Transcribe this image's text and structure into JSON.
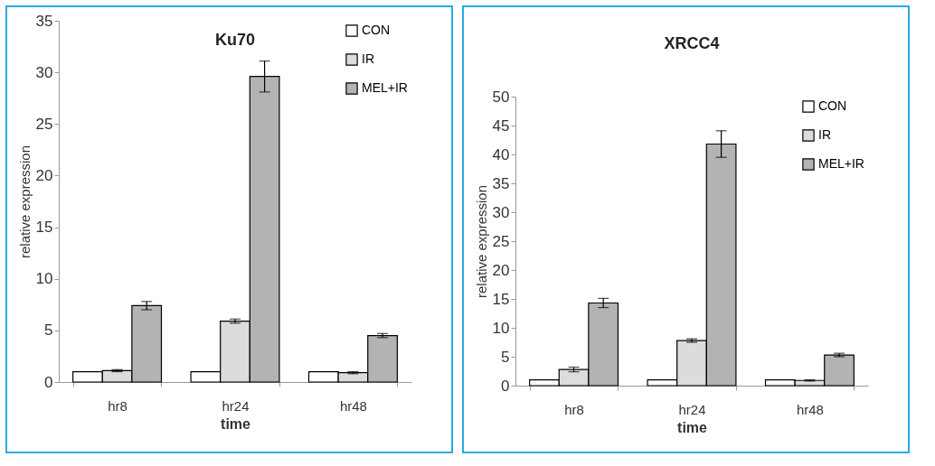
{
  "chart_data": [
    {
      "type": "bar",
      "title": "Ku70",
      "xlabel": "time",
      "ylabel": "relative expression",
      "categories": [
        "hr8",
        "hr24",
        "hr48"
      ],
      "ylim": [
        0,
        35
      ],
      "yticks": [
        0,
        5,
        10,
        15,
        20,
        25,
        30,
        35
      ],
      "grid": false,
      "legend": "top right",
      "series": [
        {
          "name": "CON",
          "color": "#ffffff",
          "values": [
            1,
            1,
            1
          ]
        },
        {
          "name": "IR",
          "color": "#dcdcdc",
          "values": [
            1.1,
            5.9,
            0.9
          ],
          "errors": [
            0.1,
            0.2,
            0.1
          ]
        },
        {
          "name": "MEL+IR",
          "color": "#b3b3b3",
          "values": [
            7.4,
            29.6,
            4.5
          ],
          "errors": [
            0.4,
            1.5,
            0.2
          ]
        }
      ]
    },
    {
      "type": "bar",
      "title": "XRCC4",
      "xlabel": "time",
      "ylabel": "relative expression",
      "categories": [
        "hr8",
        "hr24",
        "hr48"
      ],
      "ylim": [
        0,
        50
      ],
      "yticks": [
        0,
        5,
        10,
        15,
        20,
        25,
        30,
        35,
        40,
        45,
        50
      ],
      "grid": false,
      "legend": "top right",
      "series": [
        {
          "name": "CON",
          "color": "#ffffff",
          "values": [
            1,
            1,
            1
          ]
        },
        {
          "name": "IR",
          "color": "#dcdcdc",
          "values": [
            2.8,
            7.8,
            0.9
          ],
          "errors": [
            0.4,
            0.3,
            0.1
          ]
        },
        {
          "name": "MEL+IR",
          "color": "#b3b3b3",
          "values": [
            14.3,
            41.8,
            5.3
          ],
          "errors": [
            0.8,
            2.3,
            0.3
          ]
        }
      ]
    }
  ]
}
